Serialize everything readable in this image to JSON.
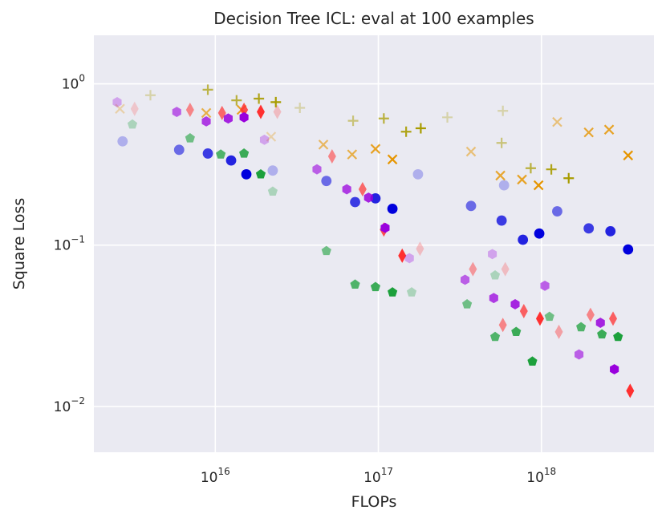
{
  "chart_data": {
    "type": "scatter",
    "title": "Decision Tree ICL: eval at 100 examples",
    "xlabel": "FLOPs",
    "ylabel": "Square Loss",
    "xscale": "log",
    "yscale": "log",
    "xlim": [
      1800000000000000.0,
      4.9e+18
    ],
    "ylim": [
      0.0052,
      2.0
    ],
    "xticks": [
      {
        "value": 1e+16,
        "base": "10",
        "exp": "16"
      },
      {
        "value": 1e+17,
        "base": "10",
        "exp": "17"
      },
      {
        "value": 1e+18,
        "base": "10",
        "exp": "18"
      }
    ],
    "yticks": [
      {
        "value": 1,
        "base": "10",
        "exp": "0"
      },
      {
        "value": 0.1,
        "base": "10",
        "exp": "−1"
      },
      {
        "value": 0.01,
        "base": "10",
        "exp": "−2"
      }
    ],
    "grid": true,
    "series": [
      {
        "name": "circle-series",
        "marker": "circle",
        "color": "#0000dd",
        "points": [
          {
            "x": 2700000000000000.0,
            "y": 0.44,
            "a": 0.25
          },
          {
            "x": 6000000000000000.0,
            "y": 0.39,
            "a": 0.55
          },
          {
            "x": 9000000000000000.0,
            "y": 0.37,
            "a": 0.75
          },
          {
            "x": 1.25e+16,
            "y": 0.335,
            "a": 0.85
          },
          {
            "x": 1.55e+16,
            "y": 0.275,
            "a": 1.0
          },
          {
            "x": 2.25e+16,
            "y": 0.29,
            "a": 0.25
          },
          {
            "x": 4.8e+16,
            "y": 0.25,
            "a": 0.55
          },
          {
            "x": 7.2e+16,
            "y": 0.185,
            "a": 0.75
          },
          {
            "x": 9.6e+16,
            "y": 0.195,
            "a": 0.85
          },
          {
            "x": 1.22e+17,
            "y": 0.168,
            "a": 1.0
          },
          {
            "x": 1.75e+17,
            "y": 0.275,
            "a": 0.25
          },
          {
            "x": 3.7e+17,
            "y": 0.175,
            "a": 0.55
          },
          {
            "x": 5.7e+17,
            "y": 0.142,
            "a": 0.75
          },
          {
            "x": 7.7e+17,
            "y": 0.108,
            "a": 0.85
          },
          {
            "x": 9.7e+17,
            "y": 0.118,
            "a": 1.0
          },
          {
            "x": 5.9e+17,
            "y": 0.235,
            "a": 0.25
          },
          {
            "x": 1.25e+18,
            "y": 0.162,
            "a": 0.55
          },
          {
            "x": 1.95e+18,
            "y": 0.127,
            "a": 0.75
          },
          {
            "x": 2.65e+18,
            "y": 0.122,
            "a": 0.85
          },
          {
            "x": 3.4e+18,
            "y": 0.094,
            "a": 1.0
          }
        ]
      },
      {
        "name": "x-series",
        "marker": "x",
        "color": "#e69500",
        "points": [
          {
            "x": 2600000000000000.0,
            "y": 0.7,
            "a": 0.3
          },
          {
            "x": 8800000000000000.0,
            "y": 0.66,
            "a": 0.7
          },
          {
            "x": 1.45e+16,
            "y": 0.69,
            "a": 0.85
          },
          {
            "x": 2.2e+16,
            "y": 0.47,
            "a": 0.3
          },
          {
            "x": 4.6e+16,
            "y": 0.42,
            "a": 0.6
          },
          {
            "x": 6.9e+16,
            "y": 0.365,
            "a": 0.7
          },
          {
            "x": 9.6e+16,
            "y": 0.395,
            "a": 0.85
          },
          {
            "x": 1.22e+17,
            "y": 0.34,
            "a": 1.0
          },
          {
            "x": 3.7e+17,
            "y": 0.38,
            "a": 0.5
          },
          {
            "x": 5.6e+17,
            "y": 0.27,
            "a": 0.8
          },
          {
            "x": 7.6e+17,
            "y": 0.255,
            "a": 0.85
          },
          {
            "x": 9.6e+17,
            "y": 0.235,
            "a": 1.0
          },
          {
            "x": 1.25e+18,
            "y": 0.58,
            "a": 0.5
          },
          {
            "x": 1.95e+18,
            "y": 0.5,
            "a": 0.8
          },
          {
            "x": 2.6e+18,
            "y": 0.52,
            "a": 0.85
          },
          {
            "x": 3.4e+18,
            "y": 0.36,
            "a": 1.0
          }
        ]
      },
      {
        "name": "plus-series",
        "marker": "plus",
        "color": "#a89c00",
        "points": [
          {
            "x": 4000000000000000.0,
            "y": 0.85,
            "a": 0.3
          },
          {
            "x": 9000000000000000.0,
            "y": 0.92,
            "a": 0.7
          },
          {
            "x": 1.35e+16,
            "y": 0.79,
            "a": 0.75
          },
          {
            "x": 1.85e+16,
            "y": 0.81,
            "a": 0.9
          },
          {
            "x": 2.35e+16,
            "y": 0.77,
            "a": 1.0
          },
          {
            "x": 3.3e+16,
            "y": 0.71,
            "a": 0.3
          },
          {
            "x": 7e+16,
            "y": 0.59,
            "a": 0.5
          },
          {
            "x": 1.08e+17,
            "y": 0.61,
            "a": 0.75
          },
          {
            "x": 1.48e+17,
            "y": 0.505,
            "a": 0.9
          },
          {
            "x": 1.82e+17,
            "y": 0.53,
            "a": 1.0
          },
          {
            "x": 2.65e+17,
            "y": 0.62,
            "a": 0.3
          },
          {
            "x": 5.7e+17,
            "y": 0.43,
            "a": 0.5
          },
          {
            "x": 8.6e+17,
            "y": 0.3,
            "a": 0.75
          },
          {
            "x": 1.15e+18,
            "y": 0.295,
            "a": 0.9
          },
          {
            "x": 1.47e+18,
            "y": 0.26,
            "a": 1.0
          },
          {
            "x": 5.8e+17,
            "y": 0.68,
            "a": 0.3
          }
        ]
      },
      {
        "name": "diamond-series",
        "marker": "diamond",
        "color": "#ff3030",
        "points": [
          {
            "x": 3200000000000000.0,
            "y": 0.7,
            "a": 0.2
          },
          {
            "x": 7000000000000000.0,
            "y": 0.69,
            "a": 0.55
          },
          {
            "x": 1.1e+16,
            "y": 0.66,
            "a": 0.7
          },
          {
            "x": 1.5e+16,
            "y": 0.69,
            "a": 0.85
          },
          {
            "x": 1.9e+16,
            "y": 0.67,
            "a": 1.0
          },
          {
            "x": 2.4e+16,
            "y": 0.67,
            "a": 0.25
          },
          {
            "x": 5.2e+16,
            "y": 0.355,
            "a": 0.55
          },
          {
            "x": 8e+16,
            "y": 0.222,
            "a": 0.7
          },
          {
            "x": 1.08e+17,
            "y": 0.125,
            "a": 0.85
          },
          {
            "x": 1.4e+17,
            "y": 0.086,
            "a": 1.0
          },
          {
            "x": 1.8e+17,
            "y": 0.095,
            "a": 0.25
          },
          {
            "x": 3.8e+17,
            "y": 0.071,
            "a": 0.45
          },
          {
            "x": 5.8e+17,
            "y": 0.032,
            "a": 0.55
          },
          {
            "x": 7.8e+17,
            "y": 0.039,
            "a": 0.75
          },
          {
            "x": 9.8e+17,
            "y": 0.035,
            "a": 1.0
          },
          {
            "x": 6e+17,
            "y": 0.071,
            "a": 0.25
          },
          {
            "x": 1.28e+18,
            "y": 0.029,
            "a": 0.4
          },
          {
            "x": 2e+18,
            "y": 0.037,
            "a": 0.55
          },
          {
            "x": 2.75e+18,
            "y": 0.035,
            "a": 0.75
          },
          {
            "x": 3.5e+18,
            "y": 0.0125,
            "a": 1.0
          }
        ]
      },
      {
        "name": "hexagon-series",
        "marker": "hexagon",
        "color": "#9900dd",
        "points": [
          {
            "x": 2500000000000000.0,
            "y": 0.77,
            "a": 0.3
          },
          {
            "x": 5800000000000000.0,
            "y": 0.67,
            "a": 0.6
          },
          {
            "x": 8800000000000000.0,
            "y": 0.585,
            "a": 0.75
          },
          {
            "x": 1.2e+16,
            "y": 0.61,
            "a": 0.85
          },
          {
            "x": 1.5e+16,
            "y": 0.62,
            "a": 1.0
          },
          {
            "x": 2e+16,
            "y": 0.45,
            "a": 0.3
          },
          {
            "x": 4.2e+16,
            "y": 0.295,
            "a": 0.6
          },
          {
            "x": 6.4e+16,
            "y": 0.222,
            "a": 0.75
          },
          {
            "x": 8.7e+16,
            "y": 0.197,
            "a": 0.85
          },
          {
            "x": 1.1e+17,
            "y": 0.128,
            "a": 1.0
          },
          {
            "x": 1.55e+17,
            "y": 0.083,
            "a": 0.3
          },
          {
            "x": 3.4e+17,
            "y": 0.061,
            "a": 0.6
          },
          {
            "x": 5.1e+17,
            "y": 0.047,
            "a": 0.75
          },
          {
            "x": 6.9e+17,
            "y": 0.043,
            "a": 0.85
          },
          {
            "x": 1.05e+18,
            "y": 0.056,
            "a": 0.6
          },
          {
            "x": 5e+17,
            "y": 0.088,
            "a": 0.3
          },
          {
            "x": 1.7e+18,
            "y": 0.021,
            "a": 0.6
          },
          {
            "x": 2.3e+18,
            "y": 0.033,
            "a": 0.85
          },
          {
            "x": 2.8e+18,
            "y": 0.017,
            "a": 1.0
          }
        ]
      },
      {
        "name": "pentagon-series",
        "marker": "pentagon",
        "color": "#1ca03c",
        "points": [
          {
            "x": 3100000000000000.0,
            "y": 0.56,
            "a": 0.3
          },
          {
            "x": 7000000000000000.0,
            "y": 0.46,
            "a": 0.6
          },
          {
            "x": 1.08e+16,
            "y": 0.365,
            "a": 0.75
          },
          {
            "x": 1.5e+16,
            "y": 0.37,
            "a": 0.85
          },
          {
            "x": 1.9e+16,
            "y": 0.275,
            "a": 1.0
          },
          {
            "x": 2.25e+16,
            "y": 0.215,
            "a": 0.3
          },
          {
            "x": 4.8e+16,
            "y": 0.092,
            "a": 0.6
          },
          {
            "x": 7.2e+16,
            "y": 0.057,
            "a": 0.75
          },
          {
            "x": 9.6e+16,
            "y": 0.055,
            "a": 0.85
          },
          {
            "x": 1.22e+17,
            "y": 0.051,
            "a": 1.0
          },
          {
            "x": 1.6e+17,
            "y": 0.051,
            "a": 0.3
          },
          {
            "x": 3.5e+17,
            "y": 0.043,
            "a": 0.6
          },
          {
            "x": 5.2e+17,
            "y": 0.027,
            "a": 0.75
          },
          {
            "x": 7e+17,
            "y": 0.029,
            "a": 0.85
          },
          {
            "x": 8.8e+17,
            "y": 0.019,
            "a": 1.0
          },
          {
            "x": 5.2e+17,
            "y": 0.065,
            "a": 0.3
          },
          {
            "x": 1.12e+18,
            "y": 0.036,
            "a": 0.6
          },
          {
            "x": 1.75e+18,
            "y": 0.031,
            "a": 0.75
          },
          {
            "x": 2.35e+18,
            "y": 0.028,
            "a": 0.85
          },
          {
            "x": 2.95e+18,
            "y": 0.027,
            "a": 1.0
          }
        ]
      }
    ]
  }
}
